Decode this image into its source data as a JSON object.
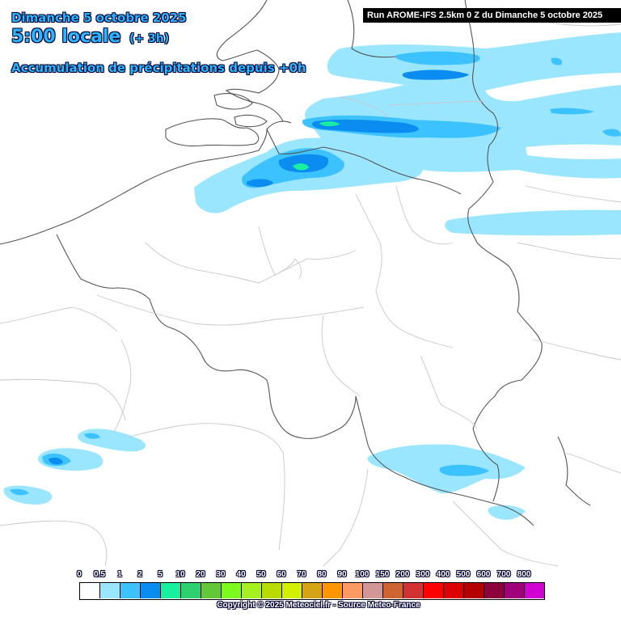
{
  "header": {
    "day": "Dimanche 5 octobre 2025",
    "time": "5:00 locale",
    "offset": "(+ 3h)",
    "subtitle": "Accumulation de précipitations depuis +0h",
    "run": "Run AROME-IFS 2.5km 0 Z du Dimanche 5 octobre 2025"
  },
  "legend": {
    "labels": [
      "0",
      "0.5",
      "1",
      "2",
      "5",
      "10",
      "20",
      "30",
      "40",
      "50",
      "60",
      "70",
      "80",
      "90",
      "100",
      "150",
      "200",
      "300",
      "400",
      "500",
      "600",
      "700",
      "800"
    ],
    "colors": [
      "#ffffff",
      "#9be6ff",
      "#3cc3ff",
      "#0a8cf0",
      "#18f0a0",
      "#2ed070",
      "#62c83a",
      "#7cfa1e",
      "#a4f020",
      "#b8dc00",
      "#d2f000",
      "#d4a414",
      "#ff9600",
      "#ff9a64",
      "#d29696",
      "#cd6432",
      "#d23232",
      "#ff0000",
      "#dc0000",
      "#b40000",
      "#8c003c",
      "#a0007a",
      "#d200d2"
    ]
  },
  "footer": {
    "copyright": "Copyright © 2025 Meteociel.fr - Source Meteo-France"
  },
  "map": {
    "region": "Belgique / Pays-Bas / Nord France",
    "precip_colors": {
      "light": "#9be6ff",
      "medium": "#3cc3ff",
      "heavy": "#0a8cf0",
      "peak": "#18f0a0"
    }
  }
}
